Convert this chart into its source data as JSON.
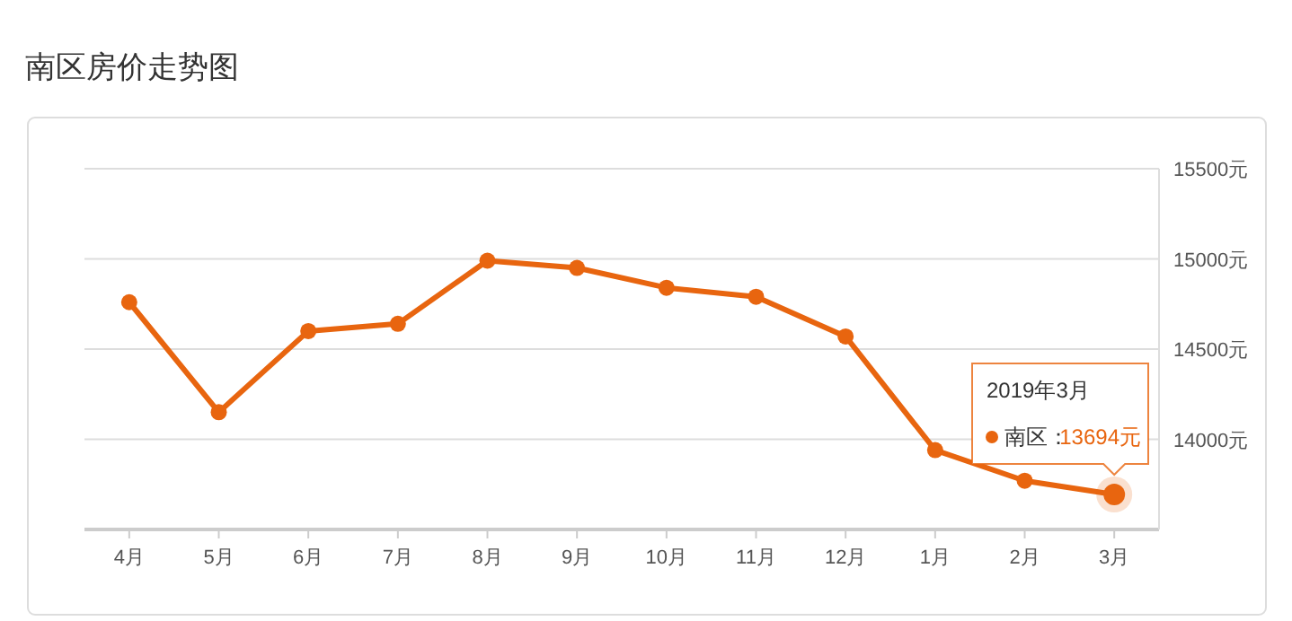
{
  "chart_data": {
    "type": "line",
    "title": "南区房价走势图",
    "categories": [
      "4月",
      "5月",
      "6月",
      "7月",
      "8月",
      "9月",
      "10月",
      "11月",
      "12月",
      "1月",
      "2月",
      "3月"
    ],
    "series": [
      {
        "name": "南区：",
        "color": "#e8650f",
        "values": [
          14760,
          14150,
          14600,
          14640,
          14990,
          14950,
          14840,
          14790,
          14570,
          13940,
          13770,
          13694
        ],
        "value_labels": [
          null,
          null,
          null,
          null,
          null,
          null,
          null,
          null,
          null,
          null,
          null,
          "13694元"
        ]
      }
    ],
    "ylim": [
      13500,
      15500
    ],
    "yticks": [
      {
        "value": 13500,
        "label": null
      },
      {
        "value": 14000,
        "label": "14000元"
      },
      {
        "value": 14500,
        "label": "14500元"
      },
      {
        "value": 15000,
        "label": "15000元"
      },
      {
        "value": 15500,
        "label": "15500元"
      }
    ],
    "annotations": [
      "2019年3月"
    ],
    "grid": "y",
    "marker": "circle",
    "line_style": "solid"
  }
}
